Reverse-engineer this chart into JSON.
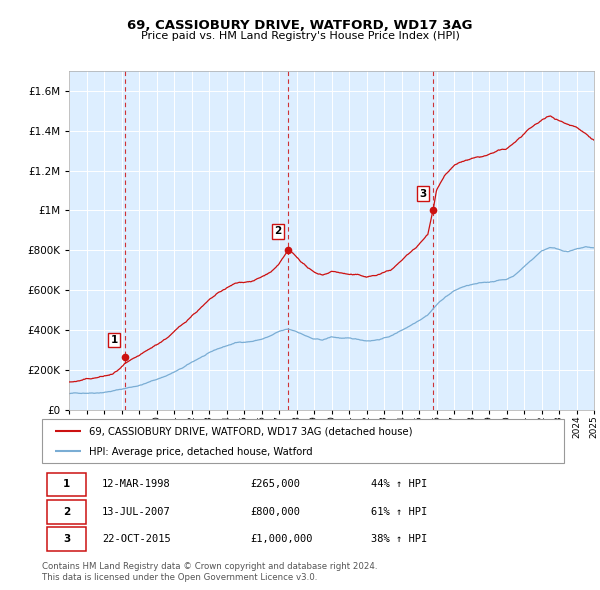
{
  "title": "69, CASSIOBURY DRIVE, WATFORD, WD17 3AG",
  "subtitle": "Price paid vs. HM Land Registry's House Price Index (HPI)",
  "sale_dates_num": [
    1998.19,
    2007.54,
    2015.81
  ],
  "sale_prices": [
    265000,
    800000,
    1000000
  ],
  "sale_labels": [
    "1",
    "2",
    "3"
  ],
  "hpi_color": "#7aadd4",
  "price_color": "#cc1111",
  "vline_color": "#cc1111",
  "bg_color": "#ddeeff",
  "legend_items": [
    "69, CASSIOBURY DRIVE, WATFORD, WD17 3AG (detached house)",
    "HPI: Average price, detached house, Watford"
  ],
  "table_rows": [
    [
      "1",
      "12-MAR-1998",
      "£265,000",
      "44% ↑ HPI"
    ],
    [
      "2",
      "13-JUL-2007",
      "£800,000",
      "61% ↑ HPI"
    ],
    [
      "3",
      "22-OCT-2015",
      "£1,000,000",
      "38% ↑ HPI"
    ]
  ],
  "footer": "Contains HM Land Registry data © Crown copyright and database right 2024.\nThis data is licensed under the Open Government Licence v3.0.",
  "ylim": [
    0,
    1700000
  ],
  "yticks": [
    0,
    200000,
    400000,
    600000,
    800000,
    1000000,
    1200000,
    1400000,
    1600000
  ],
  "hpi_keypoints": [
    [
      1995.0,
      80000
    ],
    [
      1995.5,
      82000
    ],
    [
      1996.0,
      85000
    ],
    [
      1996.5,
      88000
    ],
    [
      1997.0,
      93000
    ],
    [
      1997.5,
      100000
    ],
    [
      1998.0,
      108000
    ],
    [
      1998.5,
      118000
    ],
    [
      1999.0,
      128000
    ],
    [
      1999.5,
      142000
    ],
    [
      2000.0,
      158000
    ],
    [
      2000.5,
      175000
    ],
    [
      2001.0,
      195000
    ],
    [
      2001.5,
      215000
    ],
    [
      2002.0,
      240000
    ],
    [
      2002.5,
      265000
    ],
    [
      2003.0,
      285000
    ],
    [
      2003.5,
      305000
    ],
    [
      2004.0,
      320000
    ],
    [
      2004.5,
      335000
    ],
    [
      2005.0,
      340000
    ],
    [
      2005.5,
      345000
    ],
    [
      2006.0,
      355000
    ],
    [
      2006.5,
      370000
    ],
    [
      2007.0,
      390000
    ],
    [
      2007.5,
      400000
    ],
    [
      2008.0,
      390000
    ],
    [
      2008.5,
      370000
    ],
    [
      2009.0,
      350000
    ],
    [
      2009.5,
      345000
    ],
    [
      2010.0,
      360000
    ],
    [
      2010.5,
      355000
    ],
    [
      2011.0,
      350000
    ],
    [
      2011.5,
      345000
    ],
    [
      2012.0,
      340000
    ],
    [
      2012.5,
      345000
    ],
    [
      2013.0,
      355000
    ],
    [
      2013.5,
      370000
    ],
    [
      2014.0,
      395000
    ],
    [
      2014.5,
      420000
    ],
    [
      2015.0,
      450000
    ],
    [
      2015.5,
      480000
    ],
    [
      2016.0,
      530000
    ],
    [
      2016.5,
      570000
    ],
    [
      2017.0,
      600000
    ],
    [
      2017.5,
      620000
    ],
    [
      2018.0,
      630000
    ],
    [
      2018.5,
      635000
    ],
    [
      2019.0,
      640000
    ],
    [
      2019.5,
      650000
    ],
    [
      2020.0,
      655000
    ],
    [
      2020.5,
      680000
    ],
    [
      2021.0,
      720000
    ],
    [
      2021.5,
      760000
    ],
    [
      2022.0,
      800000
    ],
    [
      2022.5,
      820000
    ],
    [
      2023.0,
      810000
    ],
    [
      2023.5,
      800000
    ],
    [
      2024.0,
      810000
    ],
    [
      2024.5,
      820000
    ],
    [
      2025.0,
      815000
    ]
  ],
  "red_keypoints": [
    [
      1995.0,
      185000
    ],
    [
      1995.5,
      190000
    ],
    [
      1996.0,
      196000
    ],
    [
      1996.5,
      202000
    ],
    [
      1997.0,
      210000
    ],
    [
      1997.5,
      218000
    ],
    [
      1998.0,
      250000
    ],
    [
      1998.19,
      265000
    ],
    [
      1998.5,
      275000
    ],
    [
      1999.0,
      295000
    ],
    [
      1999.5,
      318000
    ],
    [
      2000.0,
      345000
    ],
    [
      2000.5,
      375000
    ],
    [
      2001.0,
      410000
    ],
    [
      2001.5,
      445000
    ],
    [
      2002.0,
      490000
    ],
    [
      2002.5,
      530000
    ],
    [
      2003.0,
      565000
    ],
    [
      2003.5,
      595000
    ],
    [
      2004.0,
      620000
    ],
    [
      2004.5,
      640000
    ],
    [
      2005.0,
      648000
    ],
    [
      2005.5,
      655000
    ],
    [
      2006.0,
      672000
    ],
    [
      2006.5,
      695000
    ],
    [
      2007.0,
      730000
    ],
    [
      2007.54,
      800000
    ],
    [
      2008.0,
      760000
    ],
    [
      2008.5,
      720000
    ],
    [
      2009.0,
      680000
    ],
    [
      2009.5,
      670000
    ],
    [
      2010.0,
      690000
    ],
    [
      2010.5,
      685000
    ],
    [
      2011.0,
      675000
    ],
    [
      2011.5,
      668000
    ],
    [
      2012.0,
      660000
    ],
    [
      2012.5,
      668000
    ],
    [
      2013.0,
      680000
    ],
    [
      2013.5,
      700000
    ],
    [
      2014.0,
      740000
    ],
    [
      2014.5,
      780000
    ],
    [
      2015.0,
      820000
    ],
    [
      2015.5,
      870000
    ],
    [
      2015.81,
      1000000
    ],
    [
      2016.0,
      1100000
    ],
    [
      2016.5,
      1180000
    ],
    [
      2017.0,
      1220000
    ],
    [
      2017.5,
      1240000
    ],
    [
      2018.0,
      1250000
    ],
    [
      2018.5,
      1255000
    ],
    [
      2019.0,
      1265000
    ],
    [
      2019.5,
      1280000
    ],
    [
      2020.0,
      1285000
    ],
    [
      2020.5,
      1320000
    ],
    [
      2021.0,
      1360000
    ],
    [
      2021.5,
      1390000
    ],
    [
      2022.0,
      1420000
    ],
    [
      2022.5,
      1440000
    ],
    [
      2023.0,
      1420000
    ],
    [
      2023.5,
      1400000
    ],
    [
      2024.0,
      1390000
    ],
    [
      2024.5,
      1360000
    ],
    [
      2025.0,
      1330000
    ]
  ]
}
